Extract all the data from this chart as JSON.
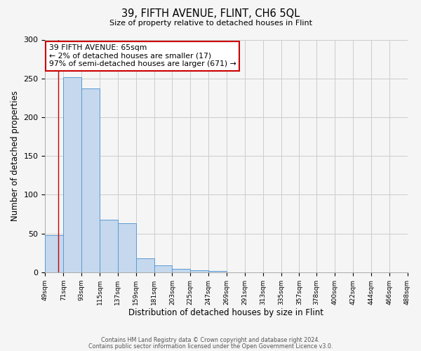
{
  "title": "39, FIFTH AVENUE, FLINT, CH6 5QL",
  "subtitle": "Size of property relative to detached houses in Flint",
  "xlabel": "Distribution of detached houses by size in Flint",
  "ylabel": "Number of detached properties",
  "footer_line1": "Contains HM Land Registry data © Crown copyright and database right 2024.",
  "footer_line2": "Contains public sector information licensed under the Open Government Licence v3.0.",
  "bin_edges": [
    49,
    71,
    93,
    115,
    137,
    159,
    181,
    203,
    225,
    247,
    269,
    291,
    313,
    335,
    357,
    378,
    400,
    422,
    444,
    466,
    488
  ],
  "bar_heights": [
    48,
    252,
    237,
    68,
    63,
    18,
    9,
    4,
    3,
    2,
    0,
    0,
    0,
    0,
    0,
    0,
    0,
    0,
    0,
    0
  ],
  "bar_color": "#c5d8ed",
  "bar_edge_color": "#5b9bd5",
  "property_size": 65,
  "annotation_title": "39 FIFTH AVENUE: 65sqm",
  "annotation_line2": "← 2% of detached houses are smaller (17)",
  "annotation_line3": "97% of semi-detached houses are larger (671) →",
  "annotation_box_color": "#ffffff",
  "annotation_box_edge": "#cc0000",
  "vline_color": "#cc0000",
  "ylim": [
    0,
    300
  ],
  "tick_labels": [
    "49sqm",
    "71sqm",
    "93sqm",
    "115sqm",
    "137sqm",
    "159sqm",
    "181sqm",
    "203sqm",
    "225sqm",
    "247sqm",
    "269sqm",
    "291sqm",
    "313sqm",
    "335sqm",
    "357sqm",
    "378sqm",
    "400sqm",
    "422sqm",
    "444sqm",
    "466sqm",
    "488sqm"
  ],
  "background_color": "#f5f5f5",
  "grid_color": "#cccccc"
}
